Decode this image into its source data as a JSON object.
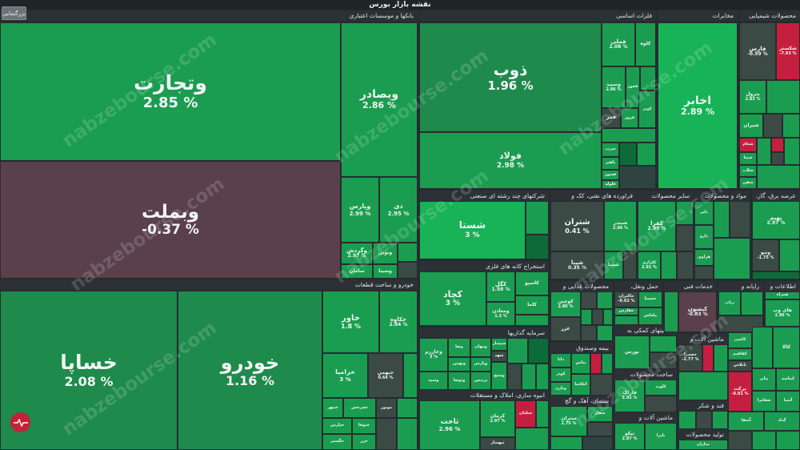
{
  "app": {
    "title": "نقشه بازار بورس",
    "zoom_button": "بزرگنمایی",
    "watermark": "nabzebourse.com"
  },
  "colors": {
    "strong_green": "#18b257",
    "green": "#1a9d50",
    "mid_green": "#1e8a4c",
    "dark_green": "#0d6b39",
    "negative": "#c51f3f",
    "flat": "#3b4a45",
    "background": "#262b30"
  },
  "sectors": {
    "banks": "بانکها و موسسات اعتباری",
    "metals": "فلزات اساسی",
    "chemicals_top": "مخابرات",
    "chemical": "محصولات شیمیایی",
    "multi": "شرکتهای چند رشته ای صنعتی",
    "refinery": "فراورده های نفتی، کک و",
    "transport": "حمل و نقل",
    "sales": "سایر محصولات",
    "materials": "مواد و محصولات",
    "cement": "عرضه برق، گاز،",
    "mining": "استخراج کانه های فلزی",
    "auto": "خودرو و ساخت قطعات",
    "food": "محصولات غذایی و",
    "transport2": "حمل ونقل،",
    "fin_services": "خدمات فنی",
    "radio": "رایانه و",
    "info": "اطلاعات و",
    "investment": "سرمایه گذاریها",
    "aux": "فعالیتهای کمکی به",
    "machinery": "ماشین آلات و",
    "insurance": "بیمه وصندوق",
    "realestate": "انبوه سازی، املاک و مستغلات",
    "cement2": "سیمان، آهک و گچ",
    "ceramic": "ساخت محصولات",
    "machinery2": "ماشین آلات و",
    "sugar": "قند و شکر",
    "pharma": "کاشی",
    "produce": "تولید محصولات"
  },
  "tiles": [
    {
      "id": "vtejarat",
      "name": "وتجارت",
      "change": "2.85 %",
      "kind": "g2"
    },
    {
      "id": "vbemellat",
      "name": "وبملت",
      "change": "-0.37 %",
      "kind": "mr"
    },
    {
      "id": "vbsader",
      "name": "وبصادر",
      "change": "2.86 %",
      "kind": "g2"
    },
    {
      "id": "vpars",
      "name": "وپارس",
      "change": "2.99 %",
      "kind": "g2"
    },
    {
      "id": "dey",
      "name": "دی",
      "change": "2.95 %",
      "kind": "g2"
    },
    {
      "id": "vgardesh",
      "name": "وگردش",
      "change": "2.97 %",
      "kind": "g2"
    },
    {
      "id": "vnovin",
      "name": "ونوین",
      "change": "",
      "kind": "g2"
    },
    {
      "id": "vsina",
      "name": "وسینا",
      "change": "",
      "kind": "g2"
    },
    {
      "id": "saman",
      "name": "سامان",
      "change": "",
      "kind": "g2"
    },
    {
      "id": "zob",
      "name": "ذوب",
      "change": "1.96 %",
      "kind": "g1"
    },
    {
      "id": "foolad",
      "name": "فولاد",
      "change": "2.98 %",
      "kind": "g2"
    },
    {
      "id": "fameli",
      "name": "فملی",
      "change": "2.08 %",
      "kind": "g2"
    },
    {
      "id": "kaveh",
      "name": "کاوه",
      "change": "",
      "kind": "g2"
    },
    {
      "id": "vsepahan",
      "name": "وسپید",
      "change": "2.96 %",
      "kind": "g2"
    },
    {
      "id": "fkhouz",
      "name": "فخوز",
      "change": "",
      "kind": "g2"
    },
    {
      "id": "fajr",
      "name": "فجر",
      "change": "",
      "kind": "gr"
    },
    {
      "id": "froz",
      "name": "فروژ",
      "change": "",
      "kind": "g2"
    },
    {
      "id": "kavir",
      "name": "کویر",
      "change": "",
      "kind": "g2"
    },
    {
      "id": "sarb",
      "name": "سرب",
      "change": "",
      "kind": "g2"
    },
    {
      "id": "fbahonar",
      "name": "باهنر",
      "change": "",
      "kind": "g2"
    },
    {
      "id": "flooleh",
      "name": "فسوژ",
      "change": "",
      "kind": "g2"
    },
    {
      "id": "fmeli",
      "name": "فلوله",
      "change": "",
      "kind": "g2"
    },
    {
      "id": "akhaber",
      "name": "اخابر",
      "change": "2.89 %",
      "kind": "g3"
    },
    {
      "id": "shegostar",
      "name": "شکستر",
      "change": "-7.93 %",
      "kind": "rd"
    },
    {
      "id": "faras",
      "name": "فارس",
      "change": "-0.59 %",
      "kind": "gr"
    },
    {
      "id": "petrol",
      "name": "پترول",
      "change": "2.83 %",
      "kind": "g2"
    },
    {
      "id": "shiran",
      "name": "شیران",
      "change": "",
      "kind": "g2"
    },
    {
      "id": "shagham",
      "name": "شغام",
      "change": "",
      "kind": "rd"
    },
    {
      "id": "shamim",
      "name": "شپنا",
      "change": "",
      "kind": "g2"
    },
    {
      "id": "shetab",
      "name": "شلاب",
      "change": "",
      "kind": "g2"
    },
    {
      "id": "shekhbar",
      "name": "شفن",
      "change": "",
      "kind": "g2"
    },
    {
      "id": "shesta",
      "name": "شستا",
      "change": "3 %",
      "kind": "g3"
    },
    {
      "id": "shatran",
      "name": "شتران",
      "change": "0.41 %",
      "kind": "gr"
    },
    {
      "id": "shpna",
      "name": "شپنا",
      "change": "0.35 %",
      "kind": "gr"
    },
    {
      "id": "shbandar",
      "name": "شبندر",
      "change": "2.96 %",
      "kind": "g2"
    },
    {
      "id": "shsina",
      "name": "شسپا",
      "change": "",
      "kind": "g2"
    },
    {
      "id": "kfra",
      "name": "کفرا",
      "change": "2.99 %",
      "kind": "g2"
    },
    {
      "id": "kelrazi",
      "name": "کلزازی",
      "change": "2.91 %",
      "kind": "g2"
    },
    {
      "id": "dalbar",
      "name": "دلبر",
      "change": "",
      "kind": "g2"
    },
    {
      "id": "dalr",
      "name": "دارو",
      "change": "",
      "kind": "g2"
    },
    {
      "id": "hlak",
      "name": "هراوی",
      "change": "",
      "kind": "g2"
    },
    {
      "id": "behgam",
      "name": "بهپم",
      "change": "2.97 %",
      "kind": "g2"
    },
    {
      "id": "vtabat",
      "name": "وتبو",
      "change": "-1.75 %",
      "kind": "gr"
    },
    {
      "id": "kchad",
      "name": "کچاد",
      "change": "3 %",
      "kind": "g2"
    },
    {
      "id": "kgol",
      "name": "کگل",
      "change": "1.58 %",
      "kind": "g2"
    },
    {
      "id": "kmamaden",
      "name": "ومعادن",
      "change": "1.2 %",
      "kind": "g2"
    },
    {
      "id": "kasoo",
      "name": "کاسپو",
      "change": "",
      "kind": "g2"
    },
    {
      "id": "kama",
      "name": "کاما",
      "change": "",
      "kind": "g2"
    },
    {
      "id": "kgin",
      "name": "کوچین",
      "change": "2.86 %",
      "kind": "g2"
    },
    {
      "id": "ghzar",
      "name": "غزر",
      "change": "",
      "kind": "gr"
    },
    {
      "id": "hakiran",
      "name": "حاکیران",
      "change": "-0.02 %",
      "kind": "gr"
    },
    {
      "id": "hfaras",
      "name": "حفارس",
      "change": "",
      "kind": "g2"
    },
    {
      "id": "hsina",
      "name": "حسینا",
      "change": "",
      "kind": "g2"
    },
    {
      "id": "mktashi",
      "name": "مکتاش",
      "change": "",
      "kind": "g2"
    },
    {
      "id": "kisun",
      "name": "کیسون",
      "change": "-0.83 %",
      "kind": "mr"
    },
    {
      "id": "ratap",
      "name": "رتاپ",
      "change": "",
      "kind": "g2"
    },
    {
      "id": "hamrah",
      "name": "همراه",
      "change": "",
      "kind": "g2"
    },
    {
      "id": "hway",
      "name": "های وب",
      "change": "2.96 %",
      "kind": "g2"
    },
    {
      "id": "kaleh",
      "name": "کالا",
      "change": "",
      "kind": "g2"
    },
    {
      "id": "khavar",
      "name": "خاور",
      "change": "1.8 %",
      "kind": "g2"
    },
    {
      "id": "khakha",
      "name": "خکاوه",
      "change": "2.84 %",
      "kind": "g2"
    },
    {
      "id": "khsapa",
      "name": "خساپا",
      "change": "2.08 %",
      "kind": "g1"
    },
    {
      "id": "khodro",
      "name": "خودرو",
      "change": "1.16 %",
      "kind": "g1"
    },
    {
      "id": "khazamia",
      "name": "خزامیا",
      "change": "3 %",
      "kind": "g2"
    },
    {
      "id": "khbahman",
      "name": "خبهمن",
      "change": "0.64 %",
      "kind": "gr"
    },
    {
      "id": "khmohr",
      "name": "خمهر",
      "change": "",
      "kind": "g2"
    },
    {
      "id": "motor",
      "name": "موتور",
      "change": "",
      "kind": "gr"
    },
    {
      "id": "khpars",
      "name": "خپارس",
      "change": "",
      "kind": "g2"
    },
    {
      "id": "khtak",
      "name": "ختوقا",
      "change": "",
      "kind": "g2"
    },
    {
      "id": "khzar",
      "name": "خزر",
      "change": "",
      "kind": "g2"
    },
    {
      "id": "khgostar",
      "name": "خگستر",
      "change": "",
      "kind": "g2"
    },
    {
      "id": "khchakesh",
      "name": "خچرخش",
      "change": "",
      "kind": "g2"
    },
    {
      "id": "vkhar",
      "name": "وخارزم",
      "change": "3 %",
      "kind": "g2"
    },
    {
      "id": "vsa",
      "name": "وصا",
      "change": "",
      "kind": "g2"
    },
    {
      "id": "vmehr",
      "name": "ومهان",
      "change": "",
      "kind": "g2"
    },
    {
      "id": "vsapa",
      "name": "وسپه",
      "change": "",
      "kind": "g2"
    },
    {
      "id": "vbahman",
      "name": "وبهمن",
      "change": "",
      "kind": "g2"
    },
    {
      "id": "vtvsa",
      "name": "وتوصا",
      "change": "",
      "kind": "g2"
    },
    {
      "id": "sepeh",
      "name": "سپیدار",
      "change": "",
      "kind": "g2"
    },
    {
      "id": "shahd",
      "name": "شهد",
      "change": "",
      "kind": "g2"
    },
    {
      "id": "vapar",
      "name": "وپارس",
      "change": "",
      "kind": "g2"
    },
    {
      "id": "vdis",
      "name": "پردیس",
      "change": "",
      "kind": "g2"
    },
    {
      "id": "vsanj",
      "name": "وسنج",
      "change": "",
      "kind": "g2"
    },
    {
      "id": "sadna",
      "name": "دانا",
      "change": "",
      "kind": "g2"
    },
    {
      "id": "vkosar",
      "name": "کوثر",
      "change": "",
      "kind": "g2"
    },
    {
      "id": "vtakin",
      "name": "وتازن",
      "change": "",
      "kind": "g2"
    },
    {
      "id": "bnas",
      "name": "بناس",
      "change": "",
      "kind": "g2"
    },
    {
      "id": "takin",
      "name": "اتکاسا",
      "change": "",
      "kind": "g2"
    },
    {
      "id": "bors",
      "name": "بورس",
      "change": "",
      "kind": "g2"
    },
    {
      "id": "tkosar",
      "name": "ثاخت",
      "change": "2.96 %",
      "kind": "g2"
    },
    {
      "id": "kerman",
      "name": "کرمان",
      "change": "2.97 %",
      "kind": "g2"
    },
    {
      "id": "saknan",
      "name": "سکنان",
      "change": "",
      "kind": "rd"
    },
    {
      "id": "thsaz",
      "name": "ثبهساز",
      "change": "",
      "kind": "gr"
    },
    {
      "id": "setran",
      "name": "ستران",
      "change": "2.75 %",
      "kind": "g2"
    },
    {
      "id": "sfars",
      "name": "سفار",
      "change": "",
      "kind": "g2"
    },
    {
      "id": "farak",
      "name": "فاراک",
      "change": "2.92 %",
      "kind": "g2"
    },
    {
      "id": "kloot",
      "name": "کلوت",
      "change": "",
      "kind": "g2"
    },
    {
      "id": "tbiko",
      "name": "تیکو",
      "change": "2.87 %",
      "kind": "g2"
    },
    {
      "id": "tayra",
      "name": "تابرا",
      "change": "",
      "kind": "g2"
    },
    {
      "id": "mdira",
      "name": "مداران",
      "change": "",
      "kind": "g2"
    },
    {
      "id": "kdama",
      "name": "کاشی",
      "change": "",
      "kind": "g2"
    },
    {
      "id": "kafdan",
      "name": "کفافیم",
      "change": "",
      "kind": "g2"
    },
    {
      "id": "tbesh",
      "name": "تایلاس",
      "change": "",
      "kind": "gr"
    },
    {
      "id": "khosdara",
      "name": "خصدرا",
      "change": "-2.77 %",
      "kind": "rd"
    },
    {
      "id": "bsaru",
      "name": "برکت",
      "change": "-0.91 %",
      "kind": "gr"
    },
    {
      "id": "ptaran",
      "name": "پتایر",
      "change": "",
      "kind": "g2"
    },
    {
      "id": "kamik",
      "name": "کماسه",
      "change": "",
      "kind": "g2"
    },
    {
      "id": "sakhtari",
      "name": "صفایرا",
      "change": "",
      "kind": "g2"
    },
    {
      "id": "askim",
      "name": "آسیا",
      "change": "",
      "kind": "g2"
    },
    {
      "id": "asfan",
      "name": "آسفا",
      "change": "",
      "kind": "g2"
    },
    {
      "id": "gdar",
      "name": "گداد",
      "change": "",
      "kind": "g2"
    }
  ]
}
